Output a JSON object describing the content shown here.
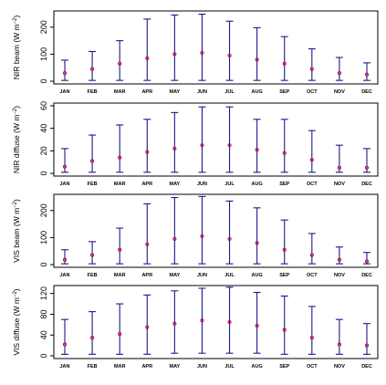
{
  "chart_data": {
    "type": "errorbar",
    "categories": [
      "JAN",
      "FEB",
      "MAR",
      "APR",
      "MAY",
      "JUN",
      "JUL",
      "AUG",
      "SEP",
      "OCT",
      "NOV",
      "DEC"
    ],
    "colors": {
      "bar": "#1a1a8c",
      "mean": "#cc0033",
      "frame": "#000000"
    },
    "grid": false,
    "panels": [
      {
        "ylabel": "NIR beam (W m",
        "ylabel_sup": "−2",
        "ylabel_close": ")",
        "ylim": [
          0,
          250
        ],
        "yticks": [
          0,
          100,
          200
        ],
        "ytick_labels": [
          "0",
          "100",
          "200"
        ],
        "mean": [
          30,
          45,
          65,
          85,
          100,
          105,
          95,
          80,
          65,
          45,
          30,
          25
        ],
        "min": [
          3,
          3,
          3,
          3,
          3,
          3,
          3,
          3,
          3,
          3,
          3,
          3
        ],
        "max": [
          78,
          110,
          150,
          230,
          245,
          248,
          222,
          198,
          165,
          120,
          88,
          68
        ]
      },
      {
        "ylabel": "NIR diffuse (W m",
        "ylabel_sup": "−2",
        "ylabel_close": ")",
        "ylim": [
          0,
          60
        ],
        "yticks": [
          0,
          20,
          40,
          60
        ],
        "ytick_labels": [
          "0",
          "20",
          "40",
          "60"
        ],
        "mean": [
          6,
          11,
          14,
          19,
          22,
          25,
          25,
          21,
          18,
          12,
          5,
          5
        ],
        "min": [
          1,
          1,
          1,
          1,
          1,
          1,
          1,
          1,
          1,
          1,
          1,
          1
        ],
        "max": [
          22,
          34,
          43,
          48,
          54,
          59,
          59,
          48,
          48,
          38,
          25,
          22
        ]
      },
      {
        "ylabel": "VIS beam (W m",
        "ylabel_sup": "−2",
        "ylabel_close": ")",
        "ylim": [
          0,
          250
        ],
        "yticks": [
          0,
          100,
          200
        ],
        "ytick_labels": [
          "0",
          "100",
          "200"
        ],
        "mean": [
          18,
          35,
          55,
          75,
          95,
          105,
          95,
          80,
          55,
          35,
          18,
          12
        ],
        "min": [
          3,
          3,
          3,
          3,
          3,
          3,
          3,
          3,
          3,
          3,
          3,
          3
        ],
        "max": [
          55,
          85,
          135,
          225,
          248,
          252,
          235,
          210,
          165,
          115,
          65,
          45
        ]
      },
      {
        "ylabel": "VIS diffuse (W m",
        "ylabel_sup": "−2",
        "ylabel_close": ")",
        "ylim": [
          0,
          130
        ],
        "yticks": [
          0,
          40,
          80,
          120
        ],
        "ytick_labels": [
          "0",
          "40",
          "80",
          "120"
        ],
        "mean": [
          22,
          35,
          42,
          55,
          62,
          68,
          65,
          58,
          50,
          35,
          22,
          20
        ],
        "min": [
          3,
          3,
          3,
          3,
          5,
          5,
          5,
          5,
          3,
          3,
          3,
          3
        ],
        "max": [
          70,
          85,
          100,
          117,
          125,
          130,
          132,
          122,
          115,
          95,
          70,
          62
        ]
      }
    ]
  }
}
